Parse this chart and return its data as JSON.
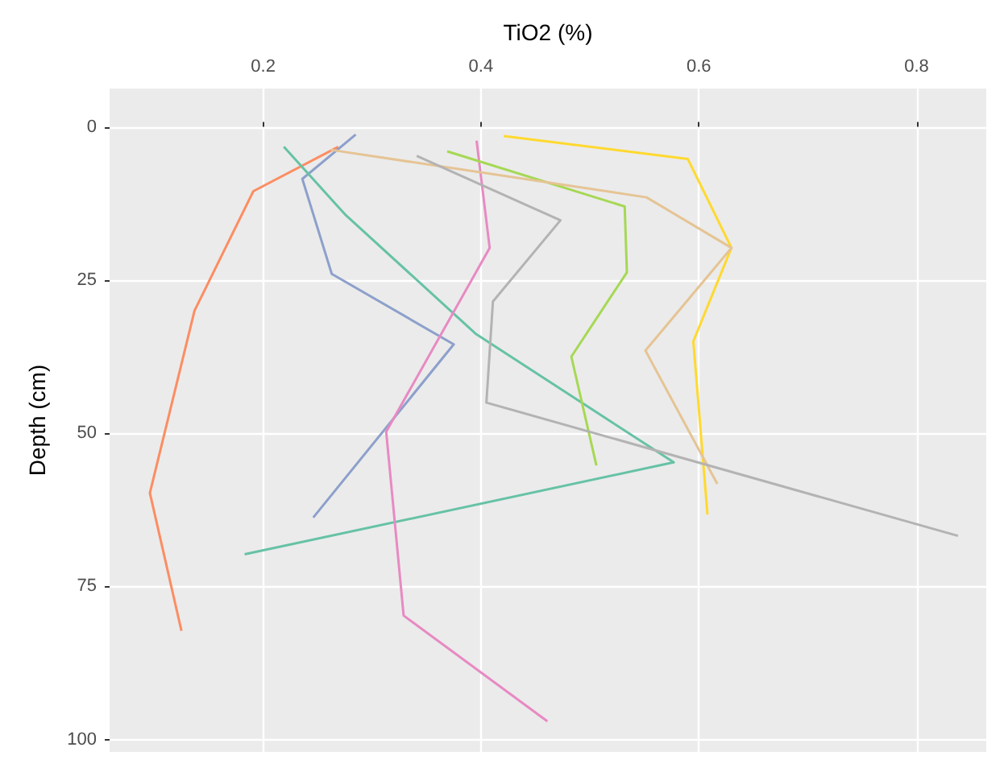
{
  "chart_data": {
    "type": "line",
    "xlabel": "TiO2 (%)",
    "ylabel": "Depth (cm)",
    "xlim": [
      0.059,
      0.864
    ],
    "xticks": [
      0.2,
      0.4,
      0.6,
      0.8
    ],
    "ylim": [
      102,
      -6.25
    ],
    "yticks": [
      0,
      25,
      50,
      75,
      100
    ],
    "grid": true,
    "marker": "none",
    "line_style": "solid",
    "series": [
      {
        "color": "#fc8d62",
        "x": [
          0.269,
          0.191,
          0.137,
          0.096,
          0.125
        ],
        "values": [
          3.25,
          10.5,
          30,
          59.75,
          82.25
        ]
      },
      {
        "color": "#8da0cb",
        "x": [
          0.285,
          0.236,
          0.263,
          0.375,
          0.246
        ],
        "values": [
          1.25,
          8.5,
          24,
          35.5,
          63.75
        ]
      },
      {
        "color": "#66c2a5",
        "x": [
          0.219,
          0.275,
          0.395,
          0.577,
          0.183
        ],
        "values": [
          3.25,
          14.25,
          33.75,
          54.75,
          69.75
        ]
      },
      {
        "color": "#e78ac3",
        "x": [
          0.396,
          0.408,
          0.313,
          0.329,
          0.461
        ],
        "values": [
          2.25,
          19.75,
          49.75,
          79.75,
          97
        ]
      },
      {
        "color": "#a6d854",
        "x": [
          0.369,
          0.532,
          0.534,
          0.483,
          0.506
        ],
        "values": [
          4,
          13,
          23.75,
          37.5,
          55.25
        ]
      },
      {
        "color": "#ffd92f",
        "x": [
          0.421,
          0.59,
          0.63,
          0.595,
          0.608
        ],
        "values": [
          1.5,
          5.25,
          19.75,
          35,
          63.25
        ]
      },
      {
        "color": "#e5c494",
        "x": [
          0.262,
          0.552,
          0.63,
          0.551,
          0.617
        ],
        "values": [
          3.75,
          11.5,
          19.75,
          36.5,
          58.25
        ]
      },
      {
        "color": "#b3b3b3",
        "x": [
          0.341,
          0.473,
          0.411,
          0.405,
          0.838
        ],
        "values": [
          4.75,
          15.25,
          28.5,
          45,
          66.75
        ]
      }
    ]
  }
}
